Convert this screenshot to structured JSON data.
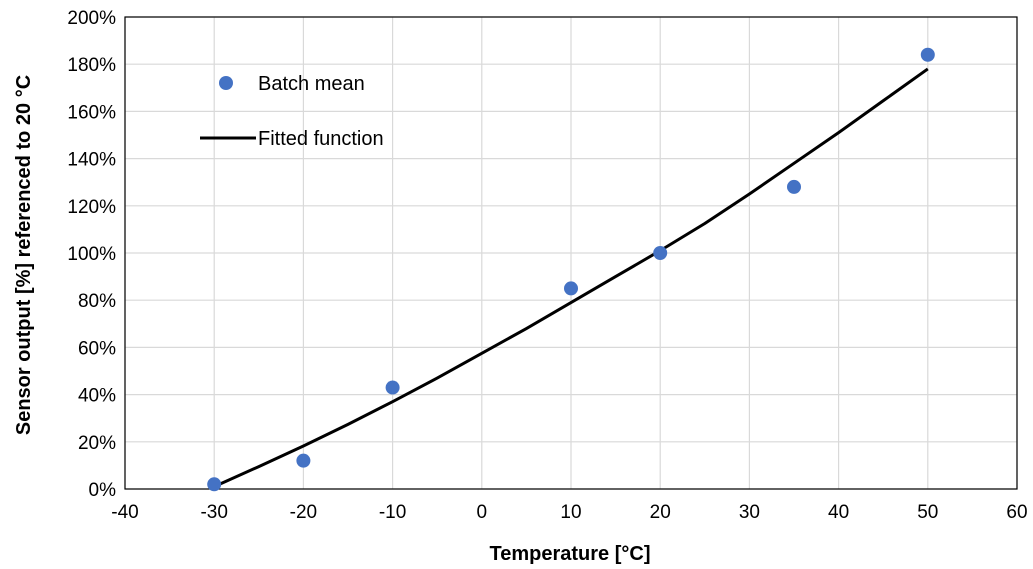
{
  "chart_data": {
    "type": "scatter",
    "title": "",
    "xlabel": "Temperature [°C]",
    "ylabel": "Sensor output [%] referenced to 20 °C",
    "xlim": [
      -40,
      60
    ],
    "ylim": [
      0,
      200
    ],
    "xticks": [
      -40,
      -30,
      -20,
      -10,
      0,
      10,
      20,
      30,
      40,
      50,
      60
    ],
    "yticks": [
      0,
      20,
      40,
      60,
      80,
      100,
      120,
      140,
      160,
      180,
      200
    ],
    "ytick_suffix": "%",
    "grid": true,
    "legend_position": "top-left",
    "series": [
      {
        "name": "Batch mean",
        "kind": "scatter",
        "color": "#4472c4",
        "x": [
          -30,
          -20,
          -10,
          10,
          20,
          35,
          50
        ],
        "y": [
          2,
          12,
          43,
          85,
          100,
          128,
          184
        ]
      },
      {
        "name": "Fitted function",
        "kind": "line",
        "color": "#000000",
        "x": [
          -30,
          -25,
          -20,
          -15,
          -10,
          -5,
          0,
          5,
          10,
          15,
          20,
          25,
          30,
          35,
          40,
          45,
          50
        ],
        "y": [
          1,
          9.5,
          18.2,
          27.4,
          37,
          47,
          57.5,
          68,
          79,
          90,
          101,
          112.5,
          125,
          138,
          151,
          164.5,
          178
        ]
      }
    ]
  }
}
